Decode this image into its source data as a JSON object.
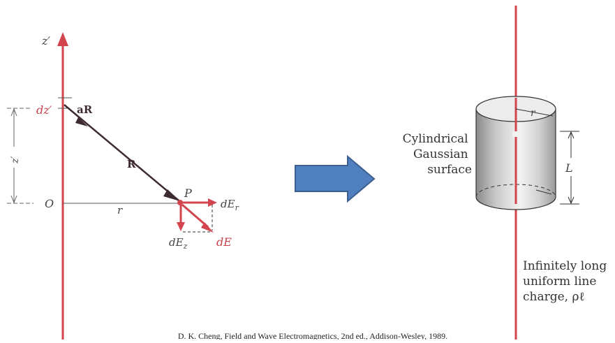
{
  "left_diagram": {
    "axis_label": "z′",
    "dz_label": "dz′",
    "aR_label": "aR",
    "aR_sub": "R",
    "R_label": "R",
    "zprime_dim_label": "z′",
    "origin_label": "O",
    "r_label": "r",
    "point_label": "P",
    "dEr_label": "dE",
    "dEr_sub": "r",
    "dEz_label": "dE",
    "dEz_sub": "z",
    "dE_label": "dE"
  },
  "arrow": {
    "color": "#4f7fbe",
    "border": "#3a5f8f"
  },
  "right_diagram": {
    "surface_label_lines": [
      "Cylindrical",
      "Gaussian",
      "surface"
    ],
    "r_label": "r",
    "L_label": "L",
    "charge_label_lines": [
      "Infinitely long",
      "uniform line",
      "charge, ρℓ"
    ]
  },
  "caption": "D. K. Cheng, Field and Wave Electromagnetics, 2nd ed., Addison-Wesley, 1989.",
  "colors": {
    "red": "#d2454f",
    "dark": "#3d2b2f",
    "gray": "#555555"
  }
}
